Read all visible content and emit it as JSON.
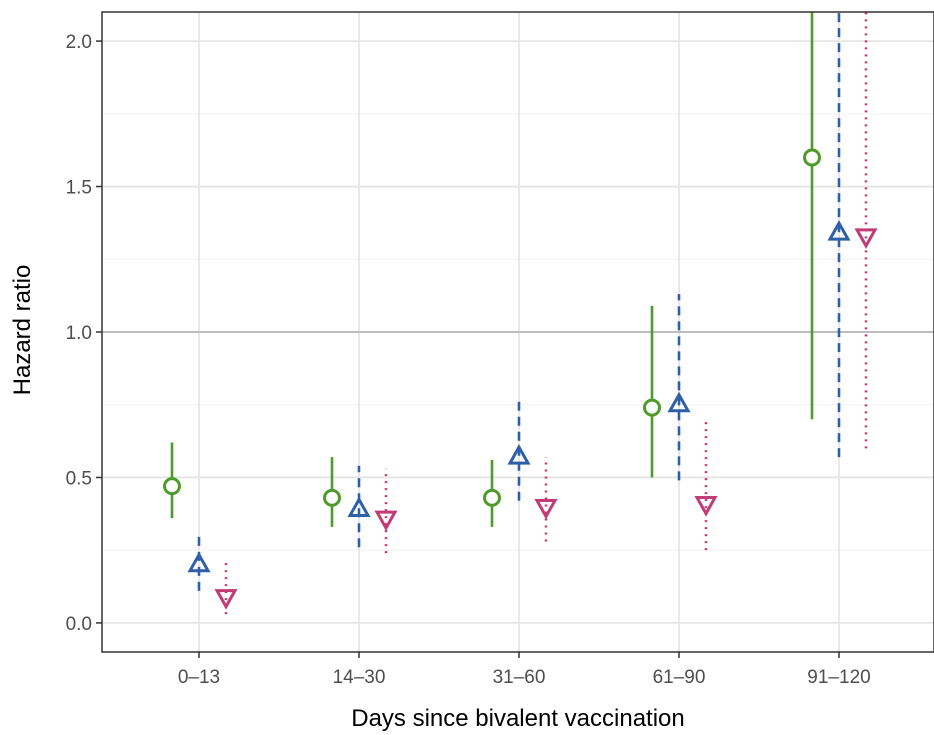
{
  "chart_data": {
    "type": "scatter",
    "title": "",
    "xlabel": "Days since bivalent vaccination",
    "ylabel": "Hazard ratio",
    "categories": [
      "0–13",
      "14–30",
      "31–60",
      "61–90",
      "91–120"
    ],
    "ylim": [
      -0.1,
      2.1
    ],
    "yticks": [
      0.0,
      0.5,
      1.0,
      1.5,
      2.0
    ],
    "ytick_labels": [
      "0.0",
      "0.5",
      "1.0",
      "1.5",
      "2.0"
    ],
    "reference_line": 1.0,
    "grid": true,
    "legend": "none",
    "series": [
      {
        "marker": "circle",
        "linestyle": "solid",
        "color": "#4e9a2b",
        "values": [
          0.47,
          0.43,
          0.43,
          0.74,
          1.6
        ],
        "lower": [
          0.36,
          0.33,
          0.33,
          0.5,
          0.7
        ],
        "upper": [
          0.62,
          0.57,
          0.56,
          1.09,
          2.1
        ]
      },
      {
        "marker": "triangle-up",
        "linestyle": "dashed",
        "color": "#2f5fa7",
        "values": [
          0.2,
          0.39,
          0.57,
          0.75,
          1.34
        ],
        "lower": [
          0.11,
          0.26,
          0.42,
          0.49,
          0.57
        ],
        "upper": [
          0.31,
          0.54,
          0.77,
          1.13,
          2.1
        ]
      },
      {
        "marker": "triangle-down",
        "linestyle": "dotted",
        "color": "#c23b77",
        "values": [
          0.09,
          0.36,
          0.4,
          0.41,
          1.33
        ],
        "lower": [
          0.03,
          0.24,
          0.28,
          0.25,
          0.6
        ],
        "upper": [
          0.21,
          0.53,
          0.57,
          0.69,
          2.1
        ]
      }
    ]
  }
}
